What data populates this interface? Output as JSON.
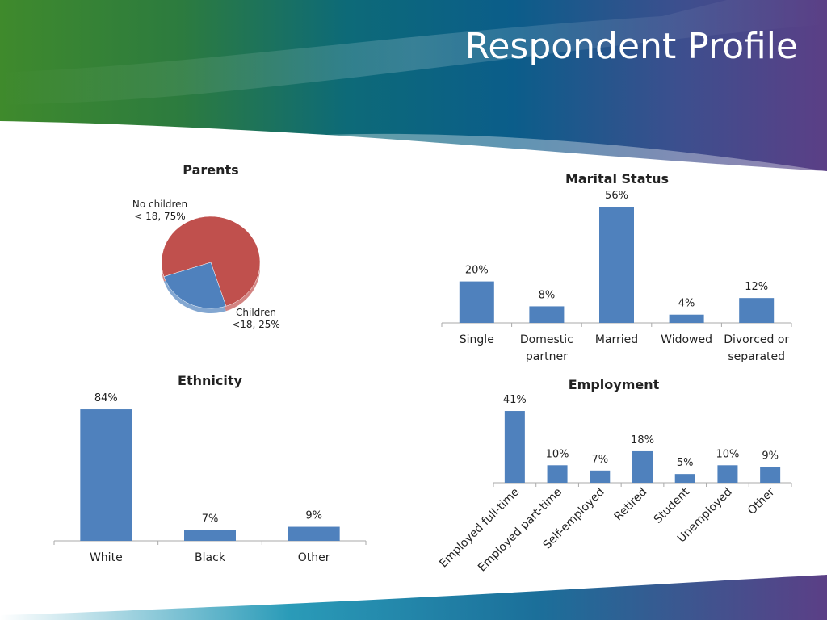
{
  "slide": {
    "title": "Respondent Profile"
  },
  "colors": {
    "bar": "#4f81bd",
    "pie_a": "#c0504d",
    "pie_b": "#4f81bd",
    "axis": "#aaaaaa"
  },
  "chart_data": [
    {
      "id": "parents",
      "type": "pie",
      "title": "Parents",
      "labels": [
        "No children < 18",
        "Children <18"
      ],
      "values": [
        75,
        25
      ],
      "label_lines": [
        [
          "No children",
          "< 18, 75%"
        ],
        [
          "Children",
          "<18, 25%"
        ]
      ]
    },
    {
      "id": "marital",
      "type": "bar",
      "title": "Marital Status",
      "categories": [
        "Single",
        "Domestic partner",
        "Married",
        "Widowed",
        "Divorced or separated"
      ],
      "category_lines": [
        [
          "Single"
        ],
        [
          "Domestic",
          "partner"
        ],
        [
          "Married"
        ],
        [
          "Widowed"
        ],
        [
          "Divorced or",
          "separated"
        ]
      ],
      "values": [
        20,
        8,
        56,
        4,
        12
      ],
      "value_labels": [
        "20%",
        "8%",
        "56%",
        "4%",
        "12%"
      ]
    },
    {
      "id": "ethnicity",
      "type": "bar",
      "title": "Ethnicity",
      "categories": [
        "White",
        "Black",
        "Other"
      ],
      "values": [
        84,
        7,
        9
      ],
      "value_labels": [
        "84%",
        "7%",
        "9%"
      ]
    },
    {
      "id": "employment",
      "type": "bar",
      "title": "Employment",
      "categories": [
        "Employed full-time",
        "Employed part-time",
        "Self-employed",
        "Retired",
        "Student",
        "Unemployed",
        "Other"
      ],
      "values": [
        41,
        10,
        7,
        18,
        5,
        10,
        9
      ],
      "value_labels": [
        "41%",
        "10%",
        "7%",
        "18%",
        "5%",
        "10%",
        "9%"
      ]
    }
  ]
}
